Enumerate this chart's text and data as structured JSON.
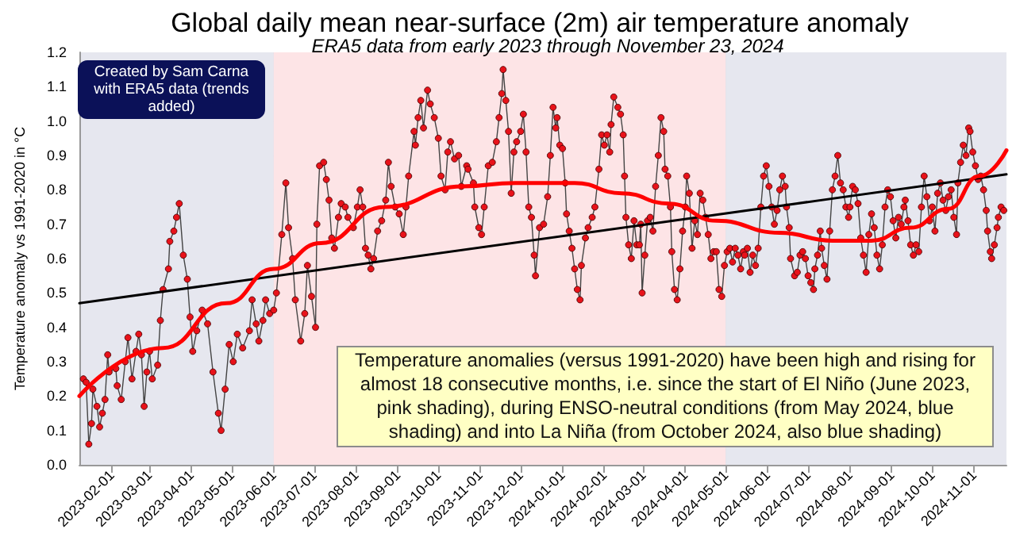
{
  "chart_data": {
    "type": "line",
    "title": "Global daily mean near-surface (2m) air temperature anomaly",
    "subtitle": "ERA5 data from early 2023 through November 23, 2024",
    "ylabel": "Temperature anomaly vs 1991-2020 in °C",
    "annotations": [
      "Temperature anomalies (versus 1991-2020) have been high and rising for almost 18 consecutive months, i.e. since the start of El Niño (June 2023, pink shading), during ENSO-neutral conditions (from May 2024, blue shading) and into La Niña (from October 2024, also blue shading)",
      "Created by Sam Carna with ERA5 data (trends added)"
    ],
    "xlim": [
      "2023-01-08",
      "2024-11-25"
    ],
    "xticks": [
      "2023-02-01",
      "2023-03-01",
      "2023-04-01",
      "2023-05-01",
      "2023-06-01",
      "2023-07-01",
      "2023-08-01",
      "2023-09-01",
      "2023-10-01",
      "2023-11-01",
      "2023-12-01",
      "2024-01-01",
      "2024-02-01",
      "2024-03-01",
      "2024-04-01",
      "2024-05-01",
      "2024-06-01",
      "2024-07-01",
      "2024-08-01",
      "2024-09-01",
      "2024-10-01",
      "2024-11-01"
    ],
    "ylim": [
      0,
      1.2
    ],
    "yticks": [
      {
        "value": 0,
        "label": "0.0"
      },
      0.1,
      0.2,
      0.3,
      0.4,
      0.5,
      0.6,
      0.7,
      0.8,
      0.9,
      {
        "value": 1,
        "label": "1.0"
      },
      1.1,
      1.2
    ],
    "grid": true,
    "marker": "circle",
    "bands": [
      {
        "axis": "x",
        "from": "2023-01-08",
        "to": "2023-06-01",
        "color": "#e6e7ef"
      },
      {
        "axis": "x",
        "from": "2023-06-01",
        "to": "2024-05-01",
        "color": "#fde4e6"
      },
      {
        "axis": "x",
        "from": "2024-05-01",
        "to": "2024-11-25",
        "color": "#e6e7ef"
      }
    ],
    "series": [
      {
        "color": "#e8121a",
        "x": [
          "2023-01-11",
          "2023-01-13",
          "2023-01-15",
          "2023-01-17",
          "2023-01-18",
          "2023-01-21",
          "2023-01-23",
          "2023-01-25",
          "2023-01-27",
          "2023-01-29",
          "2023-01-30",
          "2023-02-04",
          "2023-02-05",
          "2023-02-08",
          "2023-02-11",
          "2023-02-13",
          "2023-02-16",
          "2023-02-19",
          "2023-02-21",
          "2023-02-23",
          "2023-02-25",
          "2023-02-27",
          "2023-03-01",
          "2023-03-03",
          "2023-03-07",
          "2023-03-09",
          "2023-03-11",
          "2023-03-15",
          "2023-03-16",
          "2023-03-19",
          "2023-03-21",
          "2023-03-23",
          "2023-03-26",
          "2023-03-29",
          "2023-03-31",
          "2023-04-02",
          "2023-04-05",
          "2023-04-09",
          "2023-04-13",
          "2023-04-17",
          "2023-04-21",
          "2023-04-23",
          "2023-04-26",
          "2023-04-29",
          "2023-05-02",
          "2023-05-05",
          "2023-05-09",
          "2023-05-14",
          "2023-05-16",
          "2023-05-19",
          "2023-05-21",
          "2023-05-24",
          "2023-05-26",
          "2023-05-29",
          "2023-06-01",
          "2023-06-03",
          "2023-06-07",
          "2023-06-10",
          "2023-06-12",
          "2023-06-15",
          "2023-06-17",
          "2023-06-21",
          "2023-06-24",
          "2023-06-26",
          "2023-06-29",
          "2023-07-02",
          "2023-07-03",
          "2023-07-05",
          "2023-07-08",
          "2023-07-10",
          "2023-07-12",
          "2023-07-14",
          "2023-07-16",
          "2023-07-19",
          "2023-07-21",
          "2023-07-24",
          "2023-07-26",
          "2023-07-30",
          "2023-08-02",
          "2023-08-04",
          "2023-08-06",
          "2023-08-08",
          "2023-08-10",
          "2023-08-12",
          "2023-08-14",
          "2023-08-17",
          "2023-08-20",
          "2023-08-23",
          "2023-08-25",
          "2023-08-27",
          "2023-08-30",
          "2023-09-02",
          "2023-09-05",
          "2023-09-07",
          "2023-09-09",
          "2023-09-13",
          "2023-09-14",
          "2023-09-16",
          "2023-09-18",
          "2023-09-20",
          "2023-09-23",
          "2023-09-25",
          "2023-09-28",
          "2023-10-01",
          "2023-10-03",
          "2023-10-06",
          "2023-10-08",
          "2023-10-10",
          "2023-10-13",
          "2023-10-16",
          "2023-10-18",
          "2023-10-22",
          "2023-10-23",
          "2023-10-27",
          "2023-10-28",
          "2023-10-31",
          "2023-11-02",
          "2023-11-04",
          "2023-11-07",
          "2023-11-10",
          "2023-11-13",
          "2023-11-15",
          "2023-11-17",
          "2023-11-18",
          "2023-11-20",
          "2023-11-22",
          "2023-11-24",
          "2023-11-26",
          "2023-11-28",
          "2023-12-01",
          "2023-12-03",
          "2023-12-05",
          "2023-12-07",
          "2023-12-09",
          "2023-12-11",
          "2023-12-12",
          "2023-12-15",
          "2023-12-18",
          "2023-12-21",
          "2023-12-23",
          "2023-12-25",
          "2023-12-27",
          "2023-12-28",
          "2023-12-30",
          "2024-01-01",
          "2024-01-03",
          "2024-01-04",
          "2024-01-06",
          "2024-01-08",
          "2024-01-10",
          "2024-01-12",
          "2024-01-14",
          "2024-01-15",
          "2024-01-18",
          "2024-01-20",
          "2024-01-23",
          "2024-01-25",
          "2024-01-28",
          "2024-01-30",
          "2024-02-01",
          "2024-02-03",
          "2024-02-05",
          "2024-02-06",
          "2024-02-08",
          "2024-02-11",
          "2024-02-13",
          "2024-02-15",
          "2024-02-16",
          "2024-02-17",
          "2024-02-19",
          "2024-02-21",
          "2024-02-23",
          "2024-02-25",
          "2024-02-27",
          "2024-02-28",
          "2024-02-29",
          "2024-03-02",
          "2024-03-04",
          "2024-03-06",
          "2024-03-08",
          "2024-03-10",
          "2024-03-12",
          "2024-03-14",
          "2024-03-16",
          "2024-03-17",
          "2024-03-19",
          "2024-03-21",
          "2024-03-22",
          "2024-03-24",
          "2024-03-26",
          "2024-03-28",
          "2024-03-30",
          "2024-04-01",
          "2024-04-02",
          "2024-04-04",
          "2024-04-06",
          "2024-04-08",
          "2024-04-10",
          "2024-04-12",
          "2024-04-14",
          "2024-04-16",
          "2024-04-18",
          "2024-04-20",
          "2024-04-22",
          "2024-04-24",
          "2024-04-26",
          "2024-04-28",
          "2024-04-30",
          "2024-05-02",
          "2024-05-04",
          "2024-05-06",
          "2024-05-08",
          "2024-05-10",
          "2024-05-12",
          "2024-05-14",
          "2024-05-15",
          "2024-05-17",
          "2024-05-19",
          "2024-05-21",
          "2024-05-23",
          "2024-05-25",
          "2024-05-27",
          "2024-05-29",
          "2024-05-31",
          "2024-06-02",
          "2024-06-04",
          "2024-06-06",
          "2024-06-08",
          "2024-06-10",
          "2024-06-12",
          "2024-06-14",
          "2024-06-15",
          "2024-06-17",
          "2024-06-18",
          "2024-06-21",
          "2024-06-23",
          "2024-06-25",
          "2024-06-27",
          "2024-06-29",
          "2024-07-01",
          "2024-07-03",
          "2024-07-05",
          "2024-07-06",
          "2024-07-08",
          "2024-07-10",
          "2024-07-11",
          "2024-07-13",
          "2024-07-15",
          "2024-07-17",
          "2024-07-19",
          "2024-07-21",
          "2024-07-23",
          "2024-07-25",
          "2024-07-27",
          "2024-07-29",
          "2024-07-31",
          "2024-08-01",
          "2024-08-03",
          "2024-08-05",
          "2024-08-07",
          "2024-08-09",
          "2024-08-11",
          "2024-08-13",
          "2024-08-15",
          "2024-08-17",
          "2024-08-19",
          "2024-08-21",
          "2024-08-23",
          "2024-08-25",
          "2024-08-27",
          "2024-08-29",
          "2024-08-31",
          "2024-09-02",
          "2024-09-04",
          "2024-09-06",
          "2024-09-08",
          "2024-09-10",
          "2024-09-11",
          "2024-09-13",
          "2024-09-15",
          "2024-09-17",
          "2024-09-19",
          "2024-09-21",
          "2024-09-23",
          "2024-09-25",
          "2024-09-27",
          "2024-09-29",
          "2024-10-01",
          "2024-10-03",
          "2024-10-05",
          "2024-10-07",
          "2024-10-09",
          "2024-10-11",
          "2024-10-13",
          "2024-10-15",
          "2024-10-17",
          "2024-10-19",
          "2024-10-20",
          "2024-10-22",
          "2024-10-24",
          "2024-10-26",
          "2024-10-28",
          "2024-10-29",
          "2024-10-31",
          "2024-11-02",
          "2024-11-04",
          "2024-11-06",
          "2024-11-08",
          "2024-11-10",
          "2024-11-11",
          "2024-11-13",
          "2024-11-14",
          "2024-11-16",
          "2024-11-18",
          "2024-11-19",
          "2024-11-21",
          "2024-11-23"
        ],
        "values": [
          0.25,
          0.24,
          0.06,
          0.12,
          0.22,
          0.17,
          0.11,
          0.15,
          0.19,
          0.32,
          0.27,
          0.28,
          0.23,
          0.19,
          0.3,
          0.37,
          0.25,
          0.33,
          0.38,
          0.32,
          0.17,
          0.27,
          0.33,
          0.25,
          0.29,
          0.42,
          0.51,
          0.57,
          0.65,
          0.68,
          0.72,
          0.76,
          0.61,
          0.54,
          0.43,
          0.33,
          0.39,
          0.45,
          0.41,
          0.27,
          0.15,
          0.1,
          0.22,
          0.35,
          0.3,
          0.38,
          0.34,
          0.39,
          0.48,
          0.41,
          0.36,
          0.42,
          0.48,
          0.44,
          0.45,
          0.5,
          0.67,
          0.82,
          0.69,
          0.6,
          0.48,
          0.36,
          0.44,
          0.58,
          0.49,
          0.4,
          0.7,
          0.87,
          0.88,
          0.83,
          0.77,
          0.66,
          0.63,
          0.72,
          0.76,
          0.75,
          0.72,
          0.69,
          0.75,
          0.8,
          0.75,
          0.63,
          0.61,
          0.57,
          0.6,
          0.68,
          0.71,
          0.77,
          0.88,
          0.81,
          0.75,
          0.73,
          0.67,
          0.75,
          0.84,
          0.97,
          0.93,
          1.01,
          1.06,
          0.98,
          1.09,
          1.05,
          1.01,
          0.95,
          0.84,
          0.8,
          0.91,
          0.94,
          0.89,
          0.9,
          0.81,
          0.87,
          0.86,
          0.82,
          0.75,
          0.69,
          0.67,
          0.75,
          0.87,
          0.88,
          0.94,
          1.01,
          1.08,
          1.15,
          1.06,
          0.97,
          0.79,
          0.91,
          0.94,
          0.97,
          1.02,
          0.91,
          0.75,
          0.72,
          0.61,
          0.55,
          0.69,
          0.7,
          0.78,
          0.9,
          1.04,
          0.98,
          1.01,
          0.93,
          0.92,
          0.82,
          0.73,
          0.68,
          0.63,
          0.57,
          0.51,
          0.48,
          0.58,
          0.66,
          0.69,
          0.72,
          0.75,
          0.86,
          0.96,
          0.93,
          0.96,
          0.91,
          0.99,
          1.07,
          1.04,
          1.02,
          0.96,
          0.84,
          0.72,
          0.64,
          0.6,
          0.71,
          0.64,
          0.64,
          0.7,
          0.5,
          0.61,
          0.71,
          0.72,
          0.68,
          0.81,
          0.9,
          1.01,
          0.97,
          0.86,
          0.84,
          0.75,
          0.62,
          0.51,
          0.48,
          0.57,
          0.68,
          0.75,
          0.84,
          0.79,
          0.63,
          0.71,
          0.67,
          0.79,
          0.77,
          0.72,
          0.67,
          0.6,
          0.62,
          0.62,
          0.51,
          0.49,
          0.58,
          0.62,
          0.63,
          0.59,
          0.63,
          0.61,
          0.57,
          0.62,
          0.61,
          0.63,
          0.56,
          0.61,
          0.58,
          0.63,
          0.75,
          0.84,
          0.87,
          0.81,
          0.75,
          0.7,
          0.74,
          0.8,
          0.84,
          0.81,
          0.75,
          0.69,
          0.6,
          0.55,
          0.56,
          0.61,
          0.62,
          0.6,
          0.55,
          0.53,
          0.51,
          0.57,
          0.61,
          0.68,
          0.63,
          0.58,
          0.54,
          0.68,
          0.8,
          0.84,
          0.9,
          0.82,
          0.8,
          0.75,
          0.72,
          0.75,
          0.81,
          0.8,
          0.76,
          0.66,
          0.61,
          0.56,
          0.67,
          0.73,
          0.69,
          0.61,
          0.57,
          0.64,
          0.75,
          0.8,
          0.78,
          0.71,
          0.66,
          0.72,
          0.7,
          0.75,
          0.77,
          0.71,
          0.64,
          0.61,
          0.64,
          0.62,
          0.75,
          0.84,
          0.78,
          0.71,
          0.75,
          0.68,
          0.79,
          0.82,
          0.77,
          0.74,
          0.78,
          0.8,
          0.72,
          0.67,
          0.82,
          0.88,
          0.93,
          0.9,
          0.98,
          0.97,
          0.91,
          0.87,
          0.83,
          0.84,
          0.8,
          0.74,
          0.68,
          0.62,
          0.6,
          0.64,
          0.69,
          0.72,
          0.75,
          0.74
        ]
      },
      {
        "color": "#000000",
        "marker": "none",
        "x": [
          "2023-01-08",
          "2024-11-25"
        ],
        "values": [
          0.47,
          0.845
        ]
      },
      {
        "color": "#ff0000",
        "marker": "none",
        "x": [
          "2023-01-08",
          "2023-03-11",
          "2023-04-27",
          "2023-06-01",
          "2023-07-06",
          "2023-08-22",
          "2023-10-19",
          "2023-11-27",
          "2024-01-10",
          "2024-02-14",
          "2024-03-20",
          "2024-04-24",
          "2024-06-10",
          "2024-07-19",
          "2024-08-17",
          "2024-09-15",
          "2024-10-13",
          "2024-11-05",
          "2024-11-25"
        ],
        "values": [
          0.2,
          0.34,
          0.47,
          0.57,
          0.645,
          0.75,
          0.81,
          0.82,
          0.82,
          0.79,
          0.76,
          0.71,
          0.675,
          0.652,
          0.652,
          0.69,
          0.745,
          0.84,
          0.915
        ]
      }
    ]
  }
}
